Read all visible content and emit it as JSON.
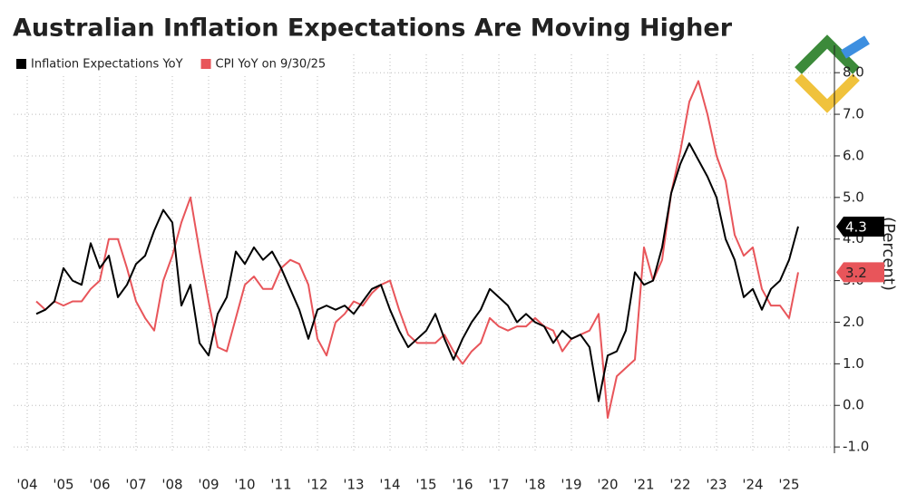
{
  "chart_data": {
    "type": "line",
    "title": "Australian Inflation Expectations Are Moving Higher",
    "y_axis_label": "(Percent)",
    "x": [
      2004.75,
      2005,
      2005.25,
      2005.5,
      2005.75,
      2006,
      2006.25,
      2006.5,
      2006.75,
      2007,
      2007.25,
      2007.5,
      2007.75,
      2008,
      2008.25,
      2008.5,
      2008.75,
      2009,
      2009.25,
      2009.5,
      2009.75,
      2010,
      2010.25,
      2010.5,
      2010.75,
      2011,
      2011.25,
      2011.5,
      2011.75,
      2012,
      2012.25,
      2012.5,
      2012.75,
      2013,
      2013.25,
      2013.5,
      2013.75,
      2014,
      2014.25,
      2014.5,
      2014.75,
      2015,
      2015.25,
      2015.5,
      2015.75,
      2016,
      2016.25,
      2016.5,
      2016.75,
      2017,
      2017.25,
      2017.5,
      2017.75,
      2018,
      2018.25,
      2018.5,
      2018.75,
      2019,
      2019.25,
      2019.5,
      2019.75,
      2020,
      2020.25,
      2020.5,
      2020.75,
      2021,
      2021.25,
      2021.5,
      2021.75,
      2022,
      2022.25,
      2022.5,
      2022.75,
      2023,
      2023.25,
      2023.5,
      2023.75,
      2024,
      2024.25,
      2024.5,
      2024.75,
      2025,
      2025.25,
      2025.5,
      2025.75
    ],
    "series": [
      {
        "name": "Inflation Expectations YoY",
        "color": "#000000",
        "end_label": "4.3",
        "values": [
          2.2,
          2.3,
          2.5,
          3.3,
          3.0,
          2.9,
          3.9,
          3.3,
          3.6,
          2.6,
          2.9,
          3.4,
          3.6,
          4.2,
          4.7,
          4.4,
          2.4,
          2.9,
          1.5,
          1.2,
          2.2,
          2.6,
          3.7,
          3.4,
          3.8,
          3.5,
          3.7,
          3.3,
          2.8,
          2.3,
          1.6,
          2.3,
          2.4,
          2.3,
          2.4,
          2.2,
          2.5,
          2.8,
          2.9,
          2.3,
          1.8,
          1.4,
          1.6,
          1.8,
          2.2,
          1.6,
          1.1,
          1.6,
          2.0,
          2.3,
          2.8,
          2.6,
          2.4,
          2.0,
          2.2,
          2.0,
          1.9,
          1.5,
          1.8,
          1.6,
          1.7,
          1.4,
          0.1,
          1.2,
          1.3,
          1.8,
          3.2,
          2.9,
          3.0,
          3.8,
          5.1,
          5.8,
          6.3,
          5.9,
          5.5,
          5.0,
          4.0,
          3.5,
          2.6,
          2.8,
          2.3,
          2.8,
          3.0,
          3.5,
          4.3
        ]
      },
      {
        "name": "CPI YoY on 9/30/25",
        "color": "#e8555a",
        "end_label": "3.2",
        "values": [
          2.5,
          2.3,
          2.5,
          2.4,
          2.5,
          2.5,
          2.8,
          3.0,
          4.0,
          4.0,
          3.3,
          2.5,
          2.1,
          1.8,
          3.0,
          3.6,
          4.4,
          5.0,
          3.7,
          2.5,
          1.4,
          1.3,
          2.1,
          2.9,
          3.1,
          2.8,
          2.8,
          3.3,
          3.5,
          3.4,
          2.9,
          1.6,
          1.2,
          2.0,
          2.2,
          2.5,
          2.4,
          2.7,
          2.9,
          3.0,
          2.3,
          1.7,
          1.5,
          1.5,
          1.5,
          1.7,
          1.3,
          1.0,
          1.3,
          1.5,
          2.1,
          1.9,
          1.8,
          1.9,
          1.9,
          2.1,
          1.9,
          1.8,
          1.3,
          1.6,
          1.7,
          1.8,
          2.2,
          -0.3,
          0.7,
          0.9,
          1.1,
          3.8,
          3.0,
          3.5,
          5.1,
          6.1,
          7.3,
          7.8,
          7.0,
          6.0,
          5.4,
          4.1,
          3.6,
          3.8,
          2.8,
          2.4,
          2.4,
          2.1,
          3.2
        ]
      }
    ],
    "xlim": [
      2004.125,
      2026.75
    ],
    "xticks": [
      {
        "value": 2004.5,
        "label": "'04"
      },
      {
        "value": 2005.5,
        "label": "'05"
      },
      {
        "value": 2006.5,
        "label": "'06"
      },
      {
        "value": 2007.5,
        "label": "'07"
      },
      {
        "value": 2008.5,
        "label": "'08"
      },
      {
        "value": 2009.5,
        "label": "'09"
      },
      {
        "value": 2010.5,
        "label": "'10"
      },
      {
        "value": 2011.5,
        "label": "'11"
      },
      {
        "value": 2012.5,
        "label": "'12"
      },
      {
        "value": 2013.5,
        "label": "'13"
      },
      {
        "value": 2014.5,
        "label": "'14"
      },
      {
        "value": 2015.5,
        "label": "'15"
      },
      {
        "value": 2016.5,
        "label": "'16"
      },
      {
        "value": 2017.5,
        "label": "'17"
      },
      {
        "value": 2018.5,
        "label": "'18"
      },
      {
        "value": 2019.5,
        "label": "'19"
      },
      {
        "value": 2020.5,
        "label": "'20"
      },
      {
        "value": 2021.5,
        "label": "'21"
      },
      {
        "value": 2022.5,
        "label": "'22"
      },
      {
        "value": 2023.5,
        "label": "'23"
      },
      {
        "value": 2024.5,
        "label": "'24"
      },
      {
        "value": 2025.5,
        "label": "'25"
      }
    ],
    "ylim": [
      -1.15,
      8.44
    ],
    "yticks": [
      {
        "value": -1,
        "label": "-1.0"
      },
      {
        "value": 0,
        "label": "0.0"
      },
      {
        "value": 1,
        "label": "1.0"
      },
      {
        "value": 2,
        "label": "2.0"
      },
      {
        "value": 3,
        "label": "3.0"
      },
      {
        "value": 4,
        "label": "4.0"
      },
      {
        "value": 5,
        "label": "5.0"
      },
      {
        "value": 6,
        "label": "6.0"
      },
      {
        "value": 7,
        "label": "7.0"
      },
      {
        "value": 8,
        "label": "8.0"
      }
    ],
    "grid": true
  }
}
